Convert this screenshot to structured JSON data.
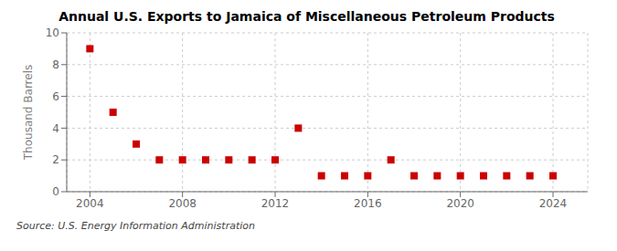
{
  "chart_data": {
    "type": "scatter",
    "title": "Annual U.S. Exports to Jamaica of Miscellaneous Petroleum Products",
    "ylabel": "Thousand Barrels",
    "annotations": [
      "Source: U.S. Energy Information Administration"
    ],
    "x": [
      2004,
      2005,
      2006,
      2007,
      2008,
      2009,
      2010,
      2011,
      2012,
      2013,
      2014,
      2015,
      2016,
      2017,
      2018,
      2019,
      2020,
      2021,
      2022,
      2023,
      2024
    ],
    "values": [
      9,
      5,
      3,
      2,
      2,
      2,
      2,
      2,
      2,
      4,
      1,
      1,
      1,
      2,
      1,
      1,
      1,
      1,
      1,
      1,
      1
    ],
    "color": "#cc0000",
    "marker": "square",
    "xlim": [
      2003.0,
      2025.5
    ],
    "xticks": [
      2004,
      2008,
      2012,
      2016,
      2020,
      2024
    ],
    "ylim": [
      0,
      10
    ],
    "yticks": [
      0,
      2,
      4,
      6,
      8,
      10
    ],
    "grid": true
  }
}
